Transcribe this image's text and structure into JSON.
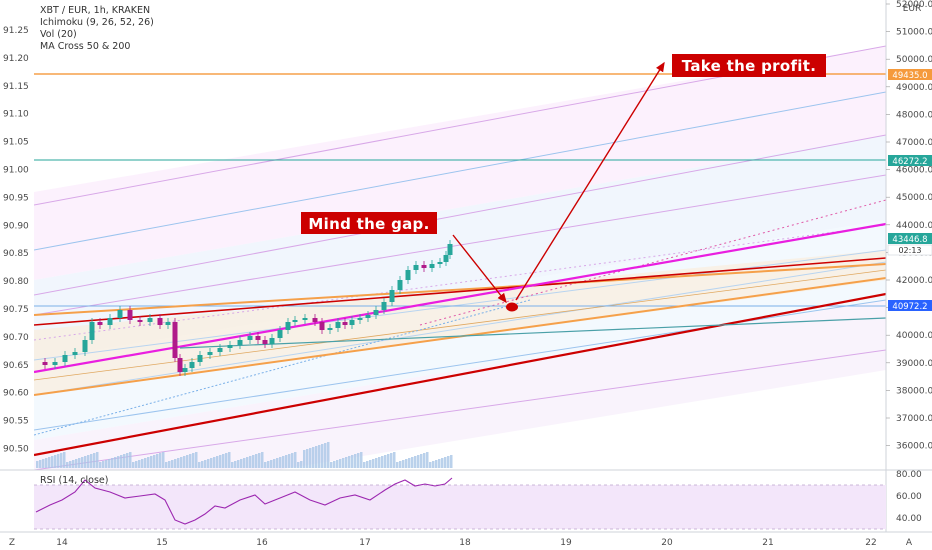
{
  "header": {
    "symbol": "XBT / EUR, 1h, KRAKEN",
    "indicators": [
      "Ichimoku (9, 26, 52, 26)",
      "Vol (20)",
      "MA Cross 50 & 200"
    ],
    "rsi_label": "RSI (14, close)"
  },
  "axes": {
    "left_ticks": [
      "91.25",
      "91.20",
      "91.15",
      "91.10",
      "91.05",
      "91.00",
      "90.95",
      "90.90",
      "90.85",
      "90.80",
      "90.75",
      "90.70",
      "90.65",
      "90.60",
      "90.55",
      "90.50"
    ],
    "right_ticks": [
      "52000.0",
      "51000.0",
      "50000.0",
      "49000.0",
      "48000.0",
      "47000.0",
      "46000.0",
      "45000.0",
      "44000.0",
      "43000.0",
      "42000.0",
      "41000.0",
      "40000.0",
      "39000.0",
      "38000.0",
      "37000.0",
      "36000.0"
    ],
    "right_unit": "EUR",
    "x_ticks": [
      "14",
      "15",
      "16",
      "17",
      "18",
      "19",
      "20",
      "21",
      "22"
    ],
    "rsi_ticks": [
      "80.00",
      "60.00",
      "40.00"
    ],
    "corner_left": "Z",
    "corner_right": "A"
  },
  "price_tags": [
    {
      "label": "49435.0",
      "color": "#f59a3c"
    },
    {
      "label": "46272.2",
      "color": "#26a69a"
    },
    {
      "label": "43446.8",
      "color": "#26a69a"
    },
    {
      "label": "02:13",
      "color": "#ffffff"
    },
    {
      "label": "40972.2",
      "color": "#2962ff"
    }
  ],
  "annotations": {
    "mind_gap": "Mind the gap.",
    "take_profit": "Take the profit."
  },
  "colors": {
    "accent_red": "#cc0000",
    "magenta": "#e91ee0",
    "orange": "#f5a04a",
    "teal": "#26a69a",
    "candle_up": "#26a69a",
    "candle_down": "#b01a8a"
  }
}
